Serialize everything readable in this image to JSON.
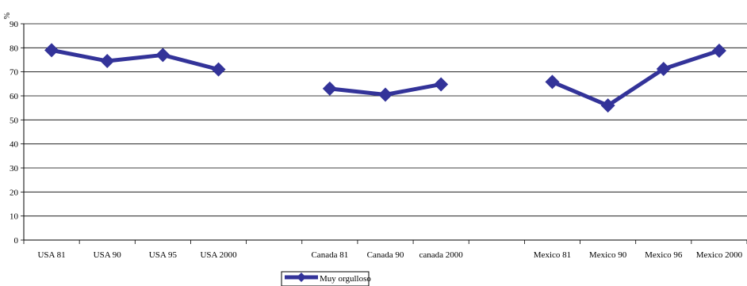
{
  "chart_data": {
    "type": "line",
    "ylabel": "%",
    "ylim": [
      0,
      90
    ],
    "yticks": [
      "0",
      "10",
      "20",
      "30",
      "40",
      "50",
      "60",
      "70",
      "80",
      "90"
    ],
    "grid": true,
    "categories": [
      "USA 81",
      "USA 90",
      "USA 95",
      "USA 2000",
      "",
      "Canada 81",
      "Canada 90",
      "canada 2000",
      "",
      "Mexico 81",
      "Mexico 90",
      "Mexico 96",
      "Mexico 2000"
    ],
    "series": [
      {
        "name": "Muy orgulloso",
        "color": "#333399",
        "marker": "diamond",
        "values": [
          79,
          74.5,
          77,
          71,
          null,
          63,
          60.5,
          64.8,
          null,
          65.8,
          56,
          71.2,
          78.8
        ]
      }
    ],
    "legend_position": "bottom-center"
  }
}
